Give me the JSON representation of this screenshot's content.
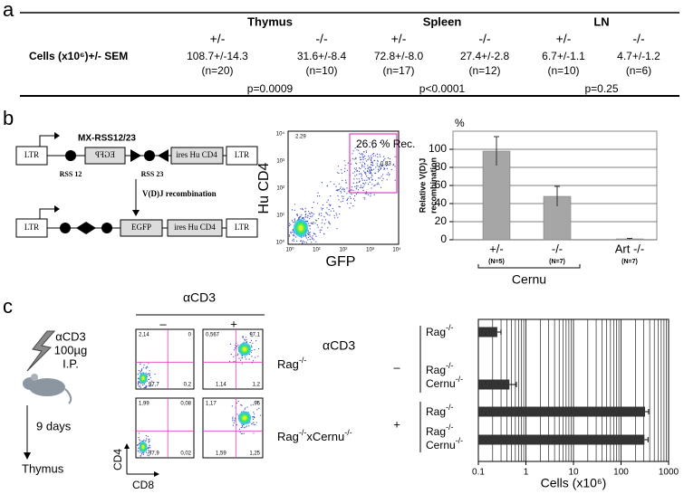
{
  "panel_labels": [
    "a",
    "b",
    "c"
  ],
  "table": {
    "groups": [
      "Thymus",
      "Spleen",
      "LN"
    ],
    "genotypes": [
      "+/-",
      "-/-",
      "+/-",
      "-/-",
      "+/-",
      "-/-"
    ],
    "row_label": "Cells (x10⁶)+/- SEM",
    "values": [
      "108.7+/-14.3",
      "31.6+/-8.4",
      "72.8+/-8.0",
      "27.4+/-2.8",
      "6.7+/-1.1",
      "4.7+/-1.2"
    ],
    "n": [
      "(n=20)",
      "(n=10)",
      "(n=17)",
      "(n=12)",
      "(n=10)",
      "(n=6)"
    ],
    "p_values": [
      "p=0.0009",
      "p<0.0001",
      "p=0.25"
    ]
  },
  "construct": {
    "title": "MX-RSS12/23",
    "top": [
      "LTR",
      "EGFP",
      "ires Hu CD4",
      "LTR"
    ],
    "rss": [
      "RSS 12",
      "RSS 23"
    ],
    "arrow_label": "V(D)J recombination",
    "bottom": [
      "LTR",
      "EGFP",
      "ires Hu CD4",
      "LTR"
    ]
  },
  "flow_b": {
    "y_label": "Hu CD4",
    "x_label": "GFP",
    "gate_label": "26.6 % Rec.",
    "quadrants": [
      "2.29",
      "0.83"
    ],
    "ticks": [
      "10⁰",
      "10¹",
      "10²",
      "10³",
      "10⁴"
    ]
  },
  "treatment": {
    "drug": "αCD3",
    "dose": "100µg",
    "route": "I.P.",
    "delay": "9 days",
    "organ": "Thymus"
  },
  "flow_c": {
    "title": "αCD3",
    "conditions": [
      "–",
      "+"
    ],
    "rows": [
      "Rag-/-",
      "Rag-/-xCernu-/-"
    ],
    "y_label": "CD4",
    "x_label": "CD8",
    "plots": [
      [
        "2,14",
        "0",
        "97,7",
        "0,2"
      ],
      [
        "0,567",
        "97,1",
        "1,14",
        "1,2"
      ],
      [
        "1,99",
        "0,08",
        "97,9",
        "0,02"
      ],
      [
        "1,17",
        "96",
        "1,59",
        "1,25"
      ]
    ]
  },
  "chart_data": [
    {
      "type": "bar",
      "y_label": [
        "Relative V(D)J",
        "recombination"
      ],
      "unit_label": "%",
      "categories": [
        "+/-",
        "-/-",
        "Art -/-"
      ],
      "sample_sizes": [
        "(N=5)",
        "(N=7)",
        "(N=7)"
      ],
      "group_label": "Cernu",
      "values": [
        98,
        48,
        1
      ],
      "errors": [
        16,
        11,
        0.5
      ],
      "color": "#a6a6a6",
      "ylim": [
        0,
        120
      ],
      "yticks": [
        0,
        20,
        40,
        60,
        80,
        100
      ],
      "grid": true
    },
    {
      "type": "hbar",
      "x_label": "Cells (x10⁶)",
      "group_title": "αCD3",
      "groups": [
        "–",
        "+"
      ],
      "categories": [
        "Rag-/-",
        "Rag-/-Cernu-/-",
        "Rag-/-",
        "Rag-/-Cernu-/-"
      ],
      "values": [
        0.25,
        0.45,
        320,
        310
      ],
      "errors": [
        0.05,
        0.18,
        60,
        60
      ],
      "color": "#333333",
      "log_scale": true,
      "xlim": [
        0.1,
        1000
      ],
      "xticks": [
        0.1,
        1,
        10,
        100,
        1000
      ],
      "grid": true
    }
  ]
}
